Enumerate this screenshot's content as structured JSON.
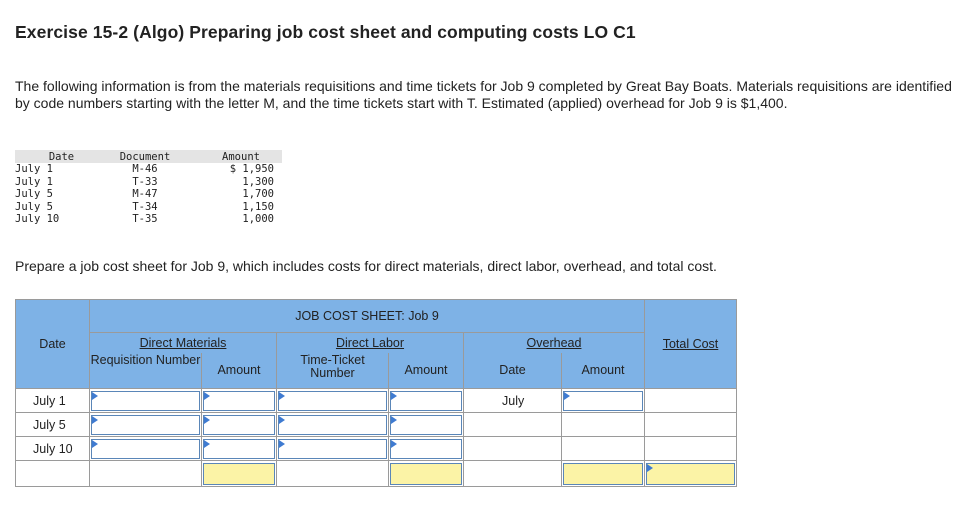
{
  "title": "Exercise 15-2 (Algo) Preparing job cost sheet and computing costs LO C1",
  "intro": "The following information is from the materials requisitions and time tickets for Job 9 completed by Great Bay Boats. Materials requisitions are identified by code numbers starting with the letter M, and the time tickets start with T. Estimated (applied) overhead for Job 9 is $1,400.",
  "requisitions": {
    "headers": [
      "Date",
      "Document",
      "Amount"
    ],
    "rows": [
      {
        "date": "July 1",
        "doc": "M-46",
        "amount": "$ 1,950"
      },
      {
        "date": "July 1",
        "doc": "T-33",
        "amount": "1,300"
      },
      {
        "date": "July 5",
        "doc": "M-47",
        "amount": "1,700"
      },
      {
        "date": "July 5",
        "doc": "T-34",
        "amount": "1,150"
      },
      {
        "date": "July 10",
        "doc": "T-35",
        "amount": "1,000"
      }
    ]
  },
  "prompt": "Prepare a job cost sheet for Job 9, which includes costs for direct materials, direct labor, overhead, and total cost.",
  "job_cost_sheet": {
    "title": "JOB COST SHEET: Job 9",
    "date_header": "Date",
    "direct_materials": "Direct Materials",
    "requisition_number": "Requisition Number",
    "amount": "Amount",
    "direct_labor": "Direct Labor",
    "time_ticket_number": "Time-Ticket Number",
    "overhead": "Overhead",
    "overhead_date": "Date",
    "total_cost": "Total Cost",
    "rows": [
      {
        "date": "July 1",
        "overhead_date": "July"
      },
      {
        "date": "July 5",
        "overhead_date": ""
      },
      {
        "date": "July 10",
        "overhead_date": ""
      }
    ]
  }
}
